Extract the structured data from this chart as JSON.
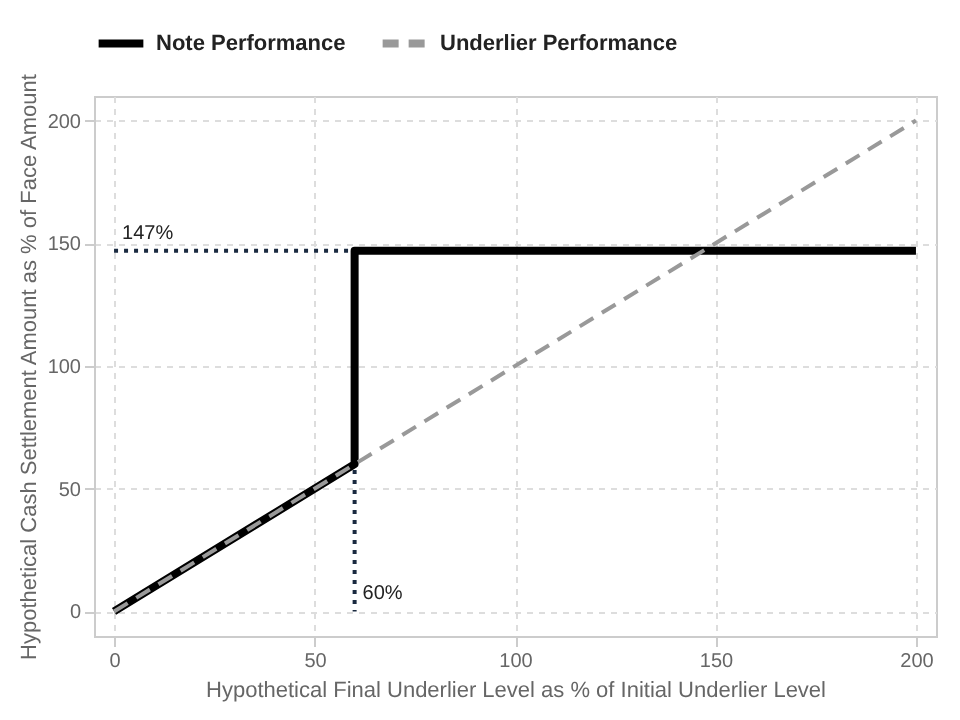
{
  "chart_data": {
    "type": "line",
    "xlabel": "Hypothetical Final Underlier Level as % of Initial Underlier Level",
    "ylabel": "Hypothetical Cash Settlement Amount as % of Face Amount",
    "xlim": [
      -5,
      205
    ],
    "ylim": [
      -10,
      210
    ],
    "xticks": [
      0,
      50,
      100,
      150,
      200
    ],
    "yticks": [
      0,
      50,
      100,
      150,
      200
    ],
    "grid": true,
    "legend": "top",
    "series": [
      {
        "color": "#1a2a40",
        "line_style": "dotted",
        "x": [
          0,
          60,
          60
        ],
        "values": [
          147,
          147,
          0
        ]
      },
      {
        "name": "Note Performance",
        "color": "#000000",
        "line_style": "solid",
        "x": [
          0,
          60,
          60,
          200
        ],
        "values": [
          0,
          60,
          147,
          147
        ]
      },
      {
        "name": "Underlier Performance",
        "color": "#999999",
        "line_style": "dashed",
        "x": [
          0,
          200
        ],
        "values": [
          0,
          200
        ]
      }
    ],
    "annotations": [
      {
        "text": "147%",
        "x": 0,
        "y": 147
      },
      {
        "text": "60%",
        "x": 60,
        "y": 0
      }
    ]
  }
}
